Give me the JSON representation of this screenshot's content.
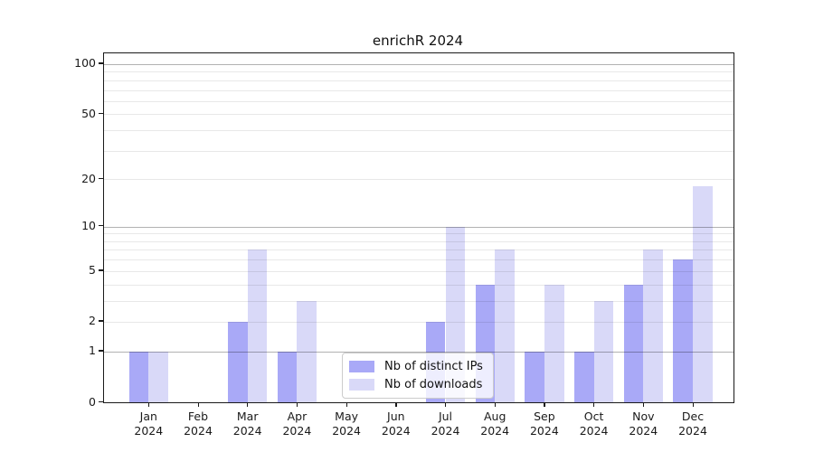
{
  "chart_data": {
    "type": "bar",
    "title": "enrichR 2024",
    "categories": [
      "Jan",
      "Feb",
      "Mar",
      "Apr",
      "May",
      "Jun",
      "Jul",
      "Aug",
      "Sep",
      "Oct",
      "Nov",
      "Dec"
    ],
    "year": "2024",
    "series": [
      {
        "name": "Nb of distinct IPs",
        "color": "#a9a9f7",
        "values": [
          1,
          0,
          2,
          1,
          0,
          0,
          2,
          4,
          1,
          1,
          4,
          6
        ]
      },
      {
        "name": "Nb of downloads",
        "color": "#d9d9f8",
        "values": [
          1,
          0,
          7,
          3,
          0,
          0,
          10,
          7,
          4,
          3,
          7,
          18
        ]
      }
    ],
    "yscale": "log1p",
    "ylim": [
      0,
      117
    ],
    "ytick_values": [
      0,
      1,
      2,
      5,
      10,
      20,
      50,
      100
    ],
    "ytick_labels": [
      "0",
      "1",
      "2",
      "5",
      "10",
      "20",
      "50",
      "100"
    ],
    "major_gridlines": [
      1,
      10,
      100
    ],
    "minor_gridlines": [
      2,
      3,
      4,
      5,
      6,
      7,
      8,
      9,
      20,
      30,
      40,
      50,
      60,
      70,
      80,
      90
    ],
    "grid": true,
    "legend_position": "lower center",
    "colors": {
      "axis": "#1a1a1a",
      "major_grid": "#b0b0b0",
      "minor_grid": "#e8e8e8",
      "background": "#ffffff"
    }
  }
}
